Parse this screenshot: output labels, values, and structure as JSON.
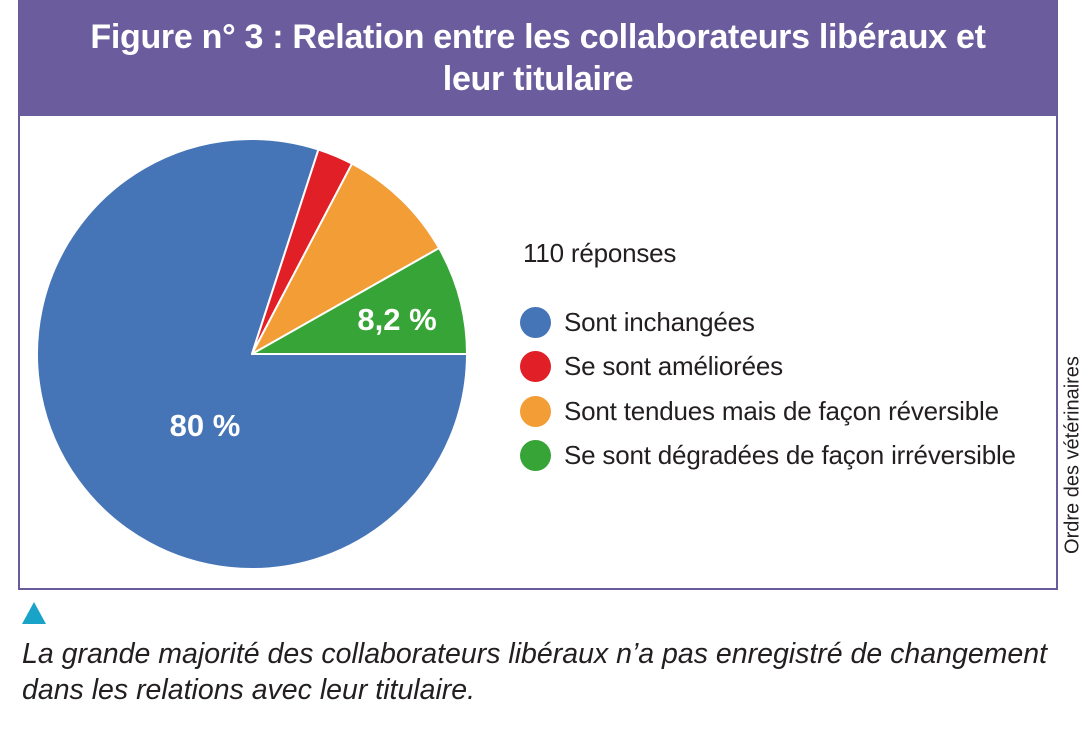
{
  "title": "Figure n° 3 : Relation entre les collaborateurs libéraux et leur titulaire",
  "responses_note": "110 réponses",
  "source": "Ordre des vétérinaires",
  "caption": "La grande majorité des collaborateurs libéraux n’a pas enregistré de changement dans les relations avec leur titulaire.",
  "colors": {
    "title_bar": "#6b5c9e",
    "frame": "#6a5b9d",
    "marker": "#1aa3c9"
  },
  "chart_data": {
    "type": "pie",
    "title": "Figure n° 3 : Relation entre les collaborateurs libéraux et leur titulaire",
    "legend_position": "right",
    "slices": [
      {
        "label": "Sont inchangées",
        "value": 80,
        "color": "#4575b7",
        "data_label": "80 %"
      },
      {
        "label": "Se sont améliorées",
        "value": 2.7,
        "color": "#e11f26",
        "data_label": ""
      },
      {
        "label": "Sont tendues mais de façon réversible",
        "value": 9.1,
        "color": "#f29d35",
        "data_label": ""
      },
      {
        "label": "Se sont dégradées de façon irréversible",
        "value": 8.2,
        "color": "#36a436",
        "data_label": "8,2 %"
      }
    ]
  }
}
